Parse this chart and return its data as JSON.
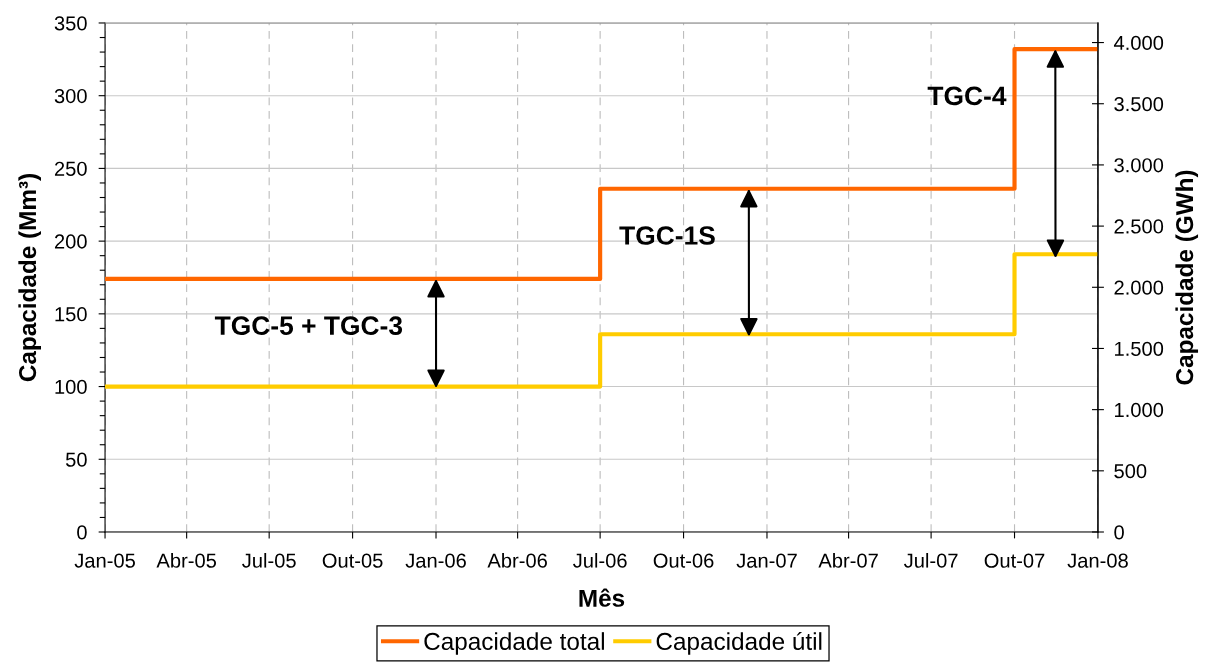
{
  "chart_data": {
    "type": "step",
    "xlabel": "Mês",
    "ylabel": "Capacidade (Mm³)",
    "y2label": "Capacidade (GWh)",
    "x": [
      "2005-01",
      "2006-07",
      "2007-10",
      "2008-01"
    ],
    "series": [
      {
        "name": "Capacidade total",
        "color": "#ff6600",
        "values": [
          174,
          236,
          332,
          332
        ]
      },
      {
        "name": "Capacidade útil",
        "color": "#ffcc00",
        "values": [
          100,
          136,
          191,
          191
        ]
      }
    ],
    "xlim": [
      "2005-01",
      "2008-01"
    ],
    "xticks": [
      {
        "value": "2005-01",
        "label": "Jan-05"
      },
      {
        "value": "2005-04",
        "label": "Abr-05"
      },
      {
        "value": "2005-07",
        "label": "Jul-05"
      },
      {
        "value": "2005-10",
        "label": "Out-05"
      },
      {
        "value": "2006-01",
        "label": "Jan-06"
      },
      {
        "value": "2006-04",
        "label": "Abr-06"
      },
      {
        "value": "2006-07",
        "label": "Jul-06"
      },
      {
        "value": "2006-10",
        "label": "Out-06"
      },
      {
        "value": "2007-01",
        "label": "Jan-07"
      },
      {
        "value": "2007-04",
        "label": "Abr-07"
      },
      {
        "value": "2007-07",
        "label": "Jul-07"
      },
      {
        "value": "2007-10",
        "label": "Out-07"
      },
      {
        "value": "2008-01",
        "label": "Jan-08"
      }
    ],
    "ylim": [
      0,
      350
    ],
    "yticks": [
      0,
      50,
      100,
      150,
      200,
      250,
      300,
      350
    ],
    "y2lim": [
      0,
      4160
    ],
    "y2ticks": [
      0,
      500,
      {
        "value": 1000,
        "label": "1.000"
      },
      {
        "value": 1500,
        "label": "1.500"
      },
      {
        "value": 2000,
        "label": "2.000"
      },
      {
        "value": 2500,
        "label": "2.500"
      },
      {
        "value": 3000,
        "label": "3.000"
      },
      {
        "value": 3500,
        "label": "3.500"
      },
      {
        "value": 4000,
        "label": "4.000"
      }
    ],
    "grid": true,
    "legend": "bottom",
    "line_style": "solid",
    "annotations": [
      {
        "text": "TGC-5 + TGC-3",
        "x": "2006-01-01",
        "y": 174
      },
      {
        "text": "TGC-1S",
        "x": "2006-12-12",
        "y": 236
      },
      {
        "text": "TGC-4",
        "x": "2007-11-15",
        "y": 332
      }
    ]
  }
}
